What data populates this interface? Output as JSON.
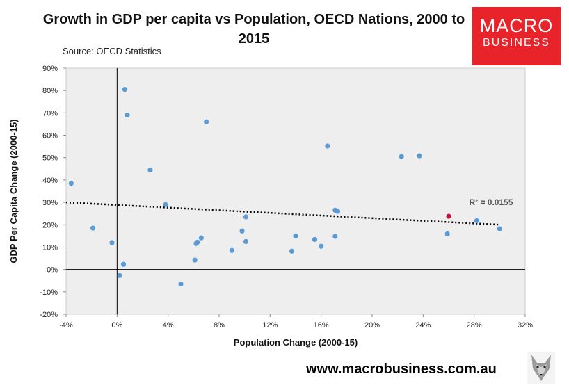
{
  "header": {
    "title": "Growth in GDP per capita vs Population, OECD Nations, 2000 to 2015",
    "source": "Source: OECD Statistics"
  },
  "logo": {
    "line1": "MACRO",
    "line2": "BUSINESS",
    "color": "#e8242a"
  },
  "footer": {
    "url": "www.macrobusiness.com.au"
  },
  "chart_data": {
    "type": "scatter",
    "title": "Growth in GDP per capita vs Population, OECD Nations, 2000 to 2015",
    "xlabel": "Population Change (2000-15)",
    "ylabel": "GDP Per Capita Change (2000-15)",
    "xlim": [
      -4,
      32
    ],
    "ylim": [
      -20,
      90
    ],
    "x_ticks": [
      -4,
      0,
      4,
      8,
      12,
      16,
      20,
      24,
      28,
      32
    ],
    "y_ticks": [
      -20,
      -10,
      0,
      10,
      20,
      30,
      40,
      50,
      60,
      70,
      80,
      90
    ],
    "x_tick_labels": [
      "-4%",
      "0%",
      "4%",
      "8%",
      "12%",
      "16%",
      "20%",
      "24%",
      "28%",
      "32%"
    ],
    "y_tick_labels": [
      "-20%",
      "-10%",
      "0%",
      "10%",
      "20%",
      "30%",
      "40%",
      "50%",
      "60%",
      "70%",
      "80%",
      "90%"
    ],
    "point_color": "#5b9bd5",
    "highlight_color": "#c0143c",
    "points": [
      {
        "x": -3.6,
        "y": 38.5
      },
      {
        "x": -1.9,
        "y": 18.5
      },
      {
        "x": -0.4,
        "y": 12.0
      },
      {
        "x": 0.2,
        "y": -2.7
      },
      {
        "x": 0.5,
        "y": 2.3
      },
      {
        "x": 0.6,
        "y": 80.5
      },
      {
        "x": 0.8,
        "y": 69.0
      },
      {
        "x": 2.6,
        "y": 44.5
      },
      {
        "x": 3.8,
        "y": 29.0
      },
      {
        "x": 5.0,
        "y": -6.5
      },
      {
        "x": 6.1,
        "y": 4.2
      },
      {
        "x": 6.2,
        "y": 11.6
      },
      {
        "x": 6.3,
        "y": 12.2
      },
      {
        "x": 6.6,
        "y": 14.1
      },
      {
        "x": 7.0,
        "y": 66.0
      },
      {
        "x": 9.0,
        "y": 8.5
      },
      {
        "x": 9.8,
        "y": 17.2
      },
      {
        "x": 10.1,
        "y": 23.5
      },
      {
        "x": 10.1,
        "y": 12.5
      },
      {
        "x": 13.7,
        "y": 8.2
      },
      {
        "x": 14.0,
        "y": 15.0
      },
      {
        "x": 15.5,
        "y": 13.4
      },
      {
        "x": 16.0,
        "y": 10.4
      },
      {
        "x": 16.5,
        "y": 55.2
      },
      {
        "x": 17.1,
        "y": 26.5
      },
      {
        "x": 17.1,
        "y": 14.8
      },
      {
        "x": 17.3,
        "y": 26.0
      },
      {
        "x": 22.3,
        "y": 50.5
      },
      {
        "x": 23.7,
        "y": 50.8
      },
      {
        "x": 25.9,
        "y": 15.9
      },
      {
        "x": 26.0,
        "y": 23.8,
        "highlight": true
      },
      {
        "x": 28.2,
        "y": 21.8
      },
      {
        "x": 30.0,
        "y": 18.2
      }
    ],
    "trendline": {
      "x": [
        -4,
        30
      ],
      "y": [
        30.0,
        20.0
      ],
      "style": "dotted",
      "color": "#000000"
    },
    "annotation": {
      "text": "R² = 0.0155",
      "x": 30.5,
      "y": 30.0
    },
    "grid": false
  }
}
